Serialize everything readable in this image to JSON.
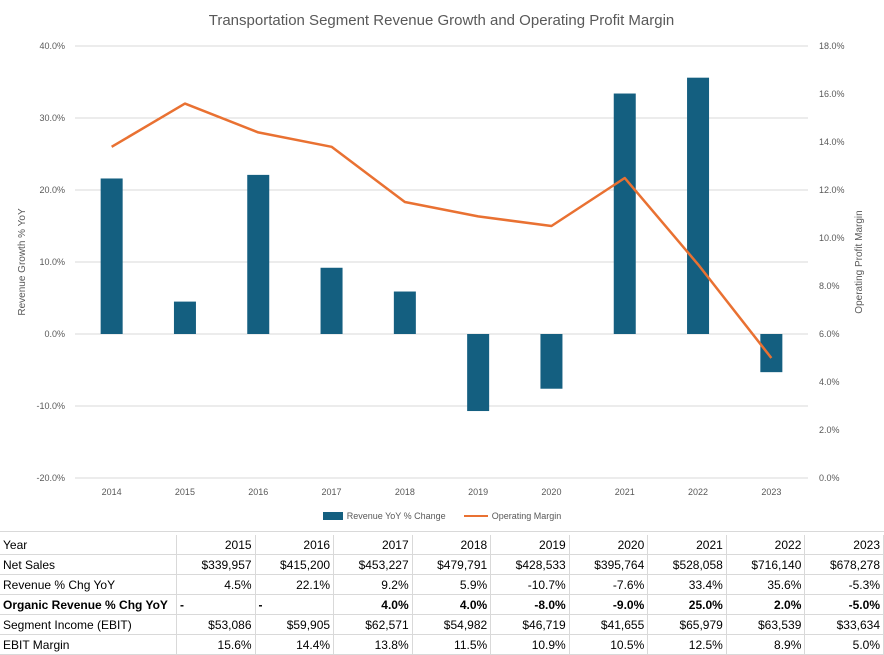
{
  "chart_data": {
    "type": "bar",
    "title": "Transportation Segment Revenue Growth and Operating Profit Margin",
    "categories": [
      "2014",
      "2015",
      "2016",
      "2017",
      "2018",
      "2019",
      "2020",
      "2021",
      "2022",
      "2023"
    ],
    "series": [
      {
        "name": "Revenue YoY % Change",
        "type": "bar",
        "axis": "left",
        "color": "#145f80",
        "values": [
          21.6,
          4.5,
          22.1,
          9.2,
          5.9,
          -10.7,
          -7.6,
          33.4,
          35.6,
          -5.3
        ]
      },
      {
        "name": "Operating Margin",
        "type": "line",
        "axis": "right",
        "color": "#e97132",
        "values": [
          13.8,
          15.6,
          14.4,
          13.8,
          11.5,
          10.9,
          10.5,
          12.5,
          8.9,
          5.0
        ]
      }
    ],
    "ylabel": "Revenue Growth % YoY",
    "y2label": "Operating Profit Margin",
    "ylim": [
      -20,
      40
    ],
    "y2lim": [
      0,
      18
    ],
    "yticks": [
      "-20.0%",
      "-10.0%",
      "0.0%",
      "10.0%",
      "20.0%",
      "30.0%",
      "40.0%"
    ],
    "y2ticks": [
      "0.0%",
      "2.0%",
      "4.0%",
      "6.0%",
      "8.0%",
      "10.0%",
      "12.0%",
      "14.0%",
      "16.0%",
      "18.0%"
    ],
    "grid": true,
    "legend_position": "bottom"
  },
  "table": {
    "header": [
      "Year",
      "2015",
      "2016",
      "2017",
      "2018",
      "2019",
      "2020",
      "2021",
      "2022",
      "2023"
    ],
    "rows": [
      {
        "label": "Net Sales",
        "bold": false,
        "values": [
          "$339,957",
          "$415,200",
          "$453,227",
          "$479,791",
          "$428,533",
          "$395,764",
          "$528,058",
          "$716,140",
          "$678,278"
        ]
      },
      {
        "label": "Revenue % Chg YoY",
        "bold": false,
        "values": [
          "4.5%",
          "22.1%",
          "9.2%",
          "5.9%",
          "-10.7%",
          "-7.6%",
          "33.4%",
          "35.6%",
          "-5.3%"
        ]
      },
      {
        "label": "Organic Revenue % Chg YoY",
        "bold": true,
        "values": [
          "-",
          "-",
          "4.0%",
          "4.0%",
          "-8.0%",
          "-9.0%",
          "25.0%",
          "2.0%",
          "-5.0%"
        ]
      },
      {
        "label": "Segment Income (EBIT)",
        "bold": false,
        "values": [
          "$53,086",
          "$59,905",
          "$62,571",
          "$54,982",
          "$46,719",
          "$41,655",
          "$65,979",
          "$63,539",
          "$33,634"
        ]
      },
      {
        "label": "EBIT Margin",
        "bold": false,
        "values": [
          "15.6%",
          "14.4%",
          "13.8%",
          "11.5%",
          "10.9%",
          "10.5%",
          "12.5%",
          "8.9%",
          "5.0%"
        ]
      }
    ]
  }
}
